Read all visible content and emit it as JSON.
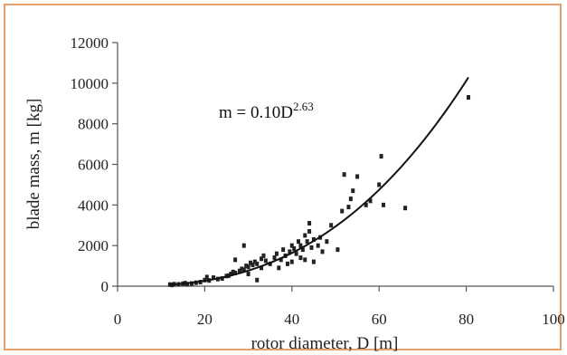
{
  "chart_data": {
    "type": "scatter",
    "xlabel": "rotor diameter, D [m]",
    "ylabel": "blade mass, m [kg]",
    "xlim": [
      0,
      100
    ],
    "ylim": [
      0,
      12000
    ],
    "x_ticks": [
      0,
      20,
      40,
      60,
      80,
      100
    ],
    "y_ticks": [
      0,
      2000,
      4000,
      6000,
      8000,
      10000,
      12000
    ],
    "grid": false,
    "annotation": {
      "base": "m = 0.10D",
      "exponent": "2.63"
    },
    "fit": {
      "coefficient": 0.1,
      "exponent": 2.63,
      "x_range": [
        12,
        80.5
      ]
    },
    "colors": {
      "points": "#222222",
      "fit_line": "#111111",
      "axis": "#555555",
      "frame": "#e8a06a"
    },
    "points": [
      [
        12,
        80
      ],
      [
        12.5,
        60
      ],
      [
        13,
        100
      ],
      [
        14,
        90
      ],
      [
        15,
        120
      ],
      [
        15.5,
        150
      ],
      [
        16,
        100
      ],
      [
        17,
        130
      ],
      [
        18,
        170
      ],
      [
        19,
        200
      ],
      [
        20,
        300
      ],
      [
        20.5,
        450
      ],
      [
        21,
        280
      ],
      [
        22,
        420
      ],
      [
        23,
        350
      ],
      [
        24,
        380
      ],
      [
        25,
        500
      ],
      [
        25.5,
        520
      ],
      [
        26,
        600
      ],
      [
        26.5,
        700
      ],
      [
        27,
        650
      ],
      [
        27,
        1300
      ],
      [
        28,
        750
      ],
      [
        28.5,
        850
      ],
      [
        29,
        800
      ],
      [
        29,
        2000
      ],
      [
        29.5,
        1000
      ],
      [
        30,
        950
      ],
      [
        30,
        600
      ],
      [
        30.5,
        1150
      ],
      [
        31,
        1050
      ],
      [
        31.5,
        1200
      ],
      [
        32,
        1100
      ],
      [
        32,
        300
      ],
      [
        33,
        1350
      ],
      [
        33,
        900
      ],
      [
        33.5,
        1500
      ],
      [
        34,
        1250
      ],
      [
        35,
        1100
      ],
      [
        36,
        1400
      ],
      [
        36.5,
        1600
      ],
      [
        37,
        900
      ],
      [
        37.5,
        1300
      ],
      [
        38,
        1800
      ],
      [
        38.5,
        1500
      ],
      [
        39,
        1100
      ],
      [
        39.5,
        1700
      ],
      [
        40,
        1200
      ],
      [
        40,
        2000
      ],
      [
        40.5,
        1850
      ],
      [
        41,
        1600
      ],
      [
        41.5,
        2200
      ],
      [
        42,
        1400
      ],
      [
        42,
        2000
      ],
      [
        42.5,
        1800
      ],
      [
        43,
        2500
      ],
      [
        43,
        1300
      ],
      [
        43.5,
        2200
      ],
      [
        44,
        3100
      ],
      [
        44,
        2700
      ],
      [
        44.5,
        1900
      ],
      [
        45,
        2300
      ],
      [
        45,
        1200
      ],
      [
        46,
        2000
      ],
      [
        46.5,
        2400
      ],
      [
        47,
        1700
      ],
      [
        48,
        2200
      ],
      [
        49,
        3000
      ],
      [
        50.5,
        1800
      ],
      [
        51.5,
        3700
      ],
      [
        52,
        5500
      ],
      [
        53,
        3900
      ],
      [
        53.5,
        4300
      ],
      [
        54,
        4700
      ],
      [
        55,
        5400
      ],
      [
        57,
        4000
      ],
      [
        58,
        4200
      ],
      [
        60,
        5000
      ],
      [
        60.5,
        6400
      ],
      [
        61,
        4000
      ],
      [
        66,
        3850
      ],
      [
        80.5,
        9300
      ]
    ]
  }
}
